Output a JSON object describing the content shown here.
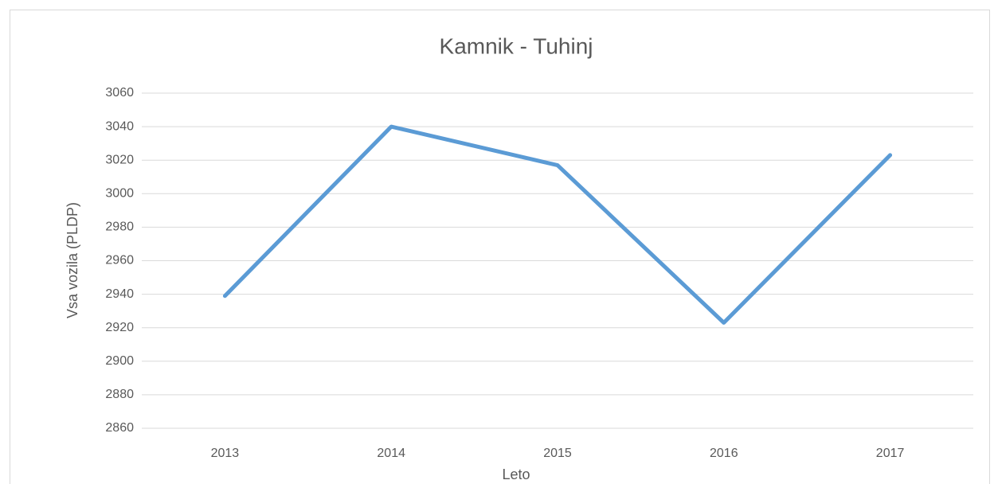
{
  "chart_data": {
    "type": "line",
    "title": "Kamnik - Tuhinj",
    "x_label": "Leto",
    "y_label": "Vsa vozila (PLDP)",
    "categories": [
      "2013",
      "2014",
      "2015",
      "2016",
      "2017"
    ],
    "series": [
      {
        "name": "Vsa vozila",
        "color": "#5b9bd5",
        "values": [
          2939,
          3040,
          3017,
          2923,
          3023
        ]
      }
    ],
    "ylim": [
      2860,
      3060
    ],
    "yticks": [
      2860,
      2880,
      2900,
      2920,
      2940,
      2960,
      2980,
      3000,
      3020,
      3040,
      3060
    ],
    "grid": true
  }
}
